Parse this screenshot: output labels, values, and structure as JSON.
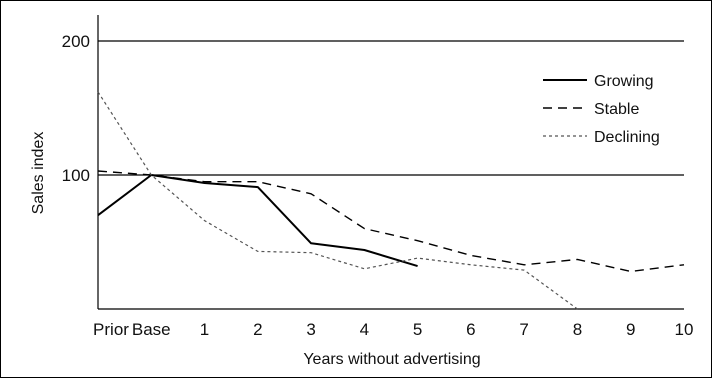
{
  "chart_data": {
    "type": "line",
    "title": "",
    "xlabel": "Years without advertising",
    "ylabel": "Sales index",
    "categories": [
      "Prior",
      "Base",
      "1",
      "2",
      "3",
      "4",
      "5",
      "6",
      "7",
      "8",
      "9",
      "10"
    ],
    "ylim": [
      0,
      220
    ],
    "yticks": [
      100,
      200
    ],
    "grid": "horizontal lines at y ticks",
    "legend": "top-right",
    "series": [
      {
        "name": "Growing",
        "style": "solid",
        "color": "#000000",
        "values": [
          70,
          100,
          94,
          91,
          49,
          44,
          32,
          null,
          null,
          null,
          null,
          null
        ]
      },
      {
        "name": "Stable",
        "style": "dashed",
        "color": "#000000",
        "values": [
          103,
          100,
          95,
          95,
          86,
          60,
          51,
          40,
          33,
          37,
          28,
          33
        ]
      },
      {
        "name": "Declining",
        "style": "dotted",
        "color": "#555555",
        "values": [
          162,
          100,
          66,
          43,
          42,
          30,
          38,
          33,
          29,
          0,
          null,
          null
        ]
      }
    ]
  }
}
